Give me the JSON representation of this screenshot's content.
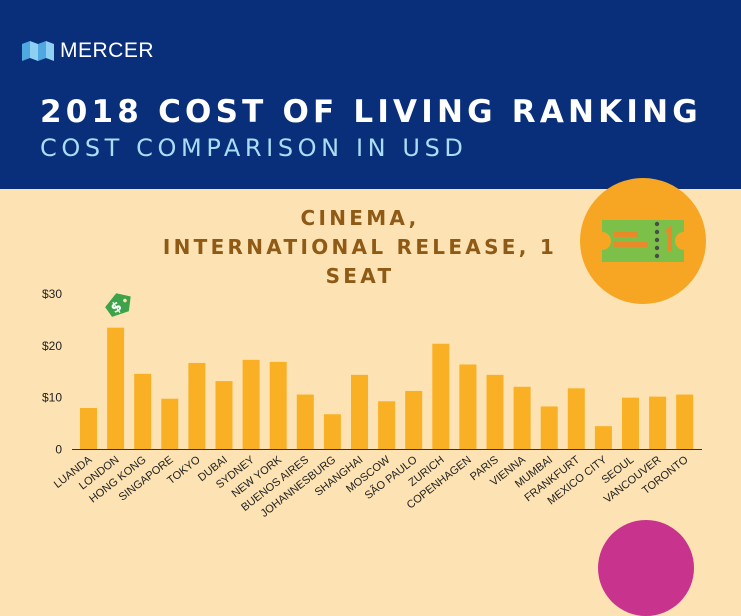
{
  "brand": {
    "name": "MERCER"
  },
  "header": {
    "title": "2018 COST OF LIVING RANKING",
    "subtitle": "COST COMPARISON IN USD"
  },
  "colors": {
    "header_bg": "#0a2f7a",
    "page_bg": "#fde3b3",
    "bar": "#f9b024",
    "title_text": "#8e5a16",
    "tag": "#3ca34a"
  },
  "icons": [
    "mercer-logo-icon",
    "ticket-icon",
    "price-tag-icon"
  ],
  "chart_data": {
    "type": "bar",
    "title": "CINEMA, INTERNATIONAL RELEASE, 1 SEAT",
    "xlabel": "",
    "ylabel": "",
    "ylim": [
      0,
      30
    ],
    "yticks": [
      "$30",
      "$20",
      "$10",
      "0"
    ],
    "ytick_values": [
      30,
      20,
      10,
      0
    ],
    "grid": false,
    "categories": [
      "LUANDA",
      "LONDON",
      "HONG KONG",
      "SINGAPORE",
      "TOKYO",
      "DUBAI",
      "SYDNEY",
      "NEW YORK",
      "BUENOS AIRES",
      "JOHANNESBURG",
      "SHANGHAI",
      "MOSCOW",
      "SÃO PAULO",
      "ZURICH",
      "COPENHAGEN",
      "PARIS",
      "VIENNA",
      "MUMBAI",
      "FRANKFURT",
      "MEXICO CITY",
      "SEOUL",
      "VANCOUVER",
      "TORONTO"
    ],
    "values": [
      8.0,
      23.5,
      14.6,
      9.8,
      16.7,
      13.2,
      17.3,
      16.9,
      10.6,
      6.8,
      14.4,
      9.3,
      11.3,
      20.4,
      16.4,
      14.4,
      12.1,
      8.3,
      11.8,
      4.5,
      10.0,
      10.2,
      10.6
    ],
    "highlight": "LONDON"
  }
}
